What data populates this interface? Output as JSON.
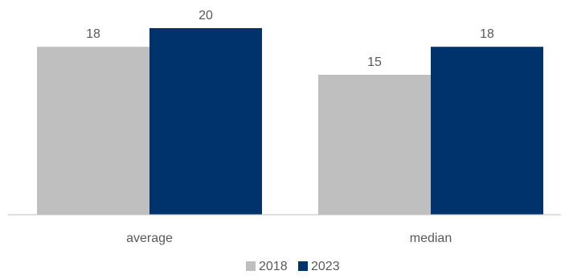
{
  "chart_data": {
    "type": "bar",
    "categories": [
      "average",
      "median"
    ],
    "series": [
      {
        "name": "2018",
        "values": [
          18,
          15
        ],
        "color": "#bfbfbf"
      },
      {
        "name": "2023",
        "values": [
          20,
          18
        ],
        "color": "#00336b"
      }
    ],
    "ylim": [
      0,
      20
    ],
    "grid": false,
    "legend": "bottom-center",
    "title": "",
    "xlabel": "",
    "ylabel": ""
  }
}
